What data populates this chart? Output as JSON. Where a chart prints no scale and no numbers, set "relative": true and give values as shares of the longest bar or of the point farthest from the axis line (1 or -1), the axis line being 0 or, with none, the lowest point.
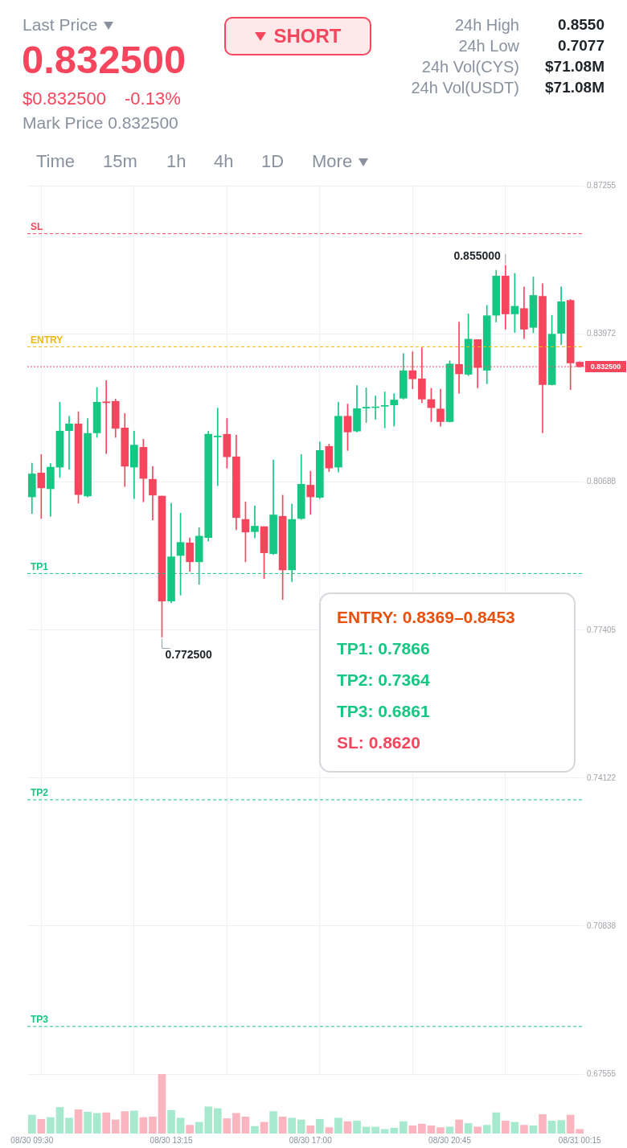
{
  "chart_data": [
    {
      "type": "other",
      "annotations": [
        "Last Price",
        "0.832500",
        "$0.832500",
        "-0.13%",
        "Mark Price 0.832500",
        "SHORT",
        "24h High",
        "0.8550",
        "24h Low",
        "0.7077",
        "24h Vol(CYS)",
        "$71.08M",
        "24h Vol(USDT)",
        "$71.08M",
        "Time",
        "15m",
        "1h",
        "4h",
        "1D",
        "More"
      ]
    },
    {
      "type": "candlestick",
      "categories": [
        null,
        null,
        null,
        null,
        null,
        null,
        null,
        null,
        null,
        null,
        null,
        null,
        null,
        null,
        null,
        null,
        null,
        null,
        null,
        null,
        null,
        null,
        null,
        null,
        null,
        null,
        null,
        null,
        null,
        null,
        null,
        null,
        null,
        null,
        null,
        null,
        null,
        null,
        null,
        null,
        null,
        null,
        null,
        null,
        null,
        null,
        null,
        null,
        null,
        null,
        null,
        null,
        null,
        null,
        null,
        null,
        null,
        null,
        null,
        null
      ],
      "ohlc": [
        [
          0.8036,
          0.8111,
          0.7999,
          0.8087
        ],
        [
          0.8089,
          0.813,
          0.7988,
          0.8056
        ],
        [
          0.8054,
          0.811,
          0.7993,
          0.8102
        ],
        [
          0.8102,
          0.8246,
          0.8079,
          0.8182
        ],
        [
          0.8183,
          0.8215,
          0.8097,
          0.8198
        ],
        [
          0.8198,
          0.8225,
          0.8022,
          0.8041
        ],
        [
          0.8038,
          0.821,
          0.8036,
          0.8177
        ],
        [
          0.8178,
          0.8279,
          0.8168,
          0.8246
        ],
        [
          0.8247,
          0.8294,
          0.8132,
          0.8245
        ],
        [
          0.8248,
          0.8253,
          0.8168,
          0.8188
        ],
        [
          0.8189,
          0.8221,
          0.8059,
          0.8104
        ],
        [
          0.8102,
          0.8182,
          0.8032,
          0.8151
        ],
        [
          0.8146,
          0.8164,
          0.8025,
          0.8077
        ],
        [
          0.8075,
          0.8104,
          0.7985,
          0.804
        ],
        [
          0.8038,
          0.8038,
          0.7725,
          0.7805
        ],
        [
          0.7805,
          0.8022,
          0.7801,
          0.7903
        ],
        [
          0.7906,
          0.8,
          0.7818,
          0.7935
        ],
        [
          0.7934,
          0.7945,
          0.7871,
          0.7892
        ],
        [
          0.7892,
          0.7968,
          0.7842,
          0.7949
        ],
        [
          0.7946,
          0.8182,
          0.7938,
          0.8175
        ],
        [
          0.8169,
          0.8233,
          0.8061,
          0.8171
        ],
        [
          0.8175,
          0.821,
          0.81,
          0.8125
        ],
        [
          0.8125,
          0.8173,
          0.7963,
          0.799
        ],
        [
          0.7986,
          0.8025,
          0.7892,
          0.7958
        ],
        [
          0.7959,
          0.8016,
          0.7945,
          0.7971
        ],
        [
          0.797,
          0.797,
          0.7855,
          0.7912
        ],
        [
          0.791,
          0.8118,
          0.7908,
          0.7996
        ],
        [
          0.7993,
          0.804,
          0.7808,
          0.7874
        ],
        [
          0.7874,
          0.802,
          0.7848,
          0.7986
        ],
        [
          0.7988,
          0.813,
          0.7986,
          0.8064
        ],
        [
          0.8062,
          0.8093,
          0.7997,
          0.8036
        ],
        [
          0.8035,
          0.8158,
          0.8032,
          0.8139
        ],
        [
          0.8148,
          0.8153,
          0.8092,
          0.81
        ],
        [
          0.8102,
          0.8246,
          0.8091,
          0.8215
        ],
        [
          0.8215,
          0.8242,
          0.8139,
          0.818
        ],
        [
          0.8182,
          0.8283,
          0.818,
          0.8232
        ],
        [
          0.8233,
          0.8278,
          0.8201,
          0.8235
        ],
        [
          0.8234,
          0.826,
          0.8208,
          0.8235
        ],
        [
          0.8237,
          0.8269,
          0.8189,
          0.8239
        ],
        [
          0.824,
          0.8265,
          0.8193,
          0.8251
        ],
        [
          0.8255,
          0.8354,
          0.8253,
          0.8316
        ],
        [
          0.8316,
          0.8358,
          0.8276,
          0.8298
        ],
        [
          0.8298,
          0.8367,
          0.8245,
          0.8253
        ],
        [
          0.8252,
          0.8277,
          0.8203,
          0.8234
        ],
        [
          0.8231,
          0.8275,
          0.8193,
          0.8203
        ],
        [
          0.8203,
          0.8338,
          0.8202,
          0.8331
        ],
        [
          0.833,
          0.8424,
          0.8266,
          0.8309
        ],
        [
          0.8308,
          0.8442,
          0.8305,
          0.8386
        ],
        [
          0.8385,
          0.8385,
          0.8278,
          0.8323
        ],
        [
          0.8317,
          0.8461,
          0.8287,
          0.8438
        ],
        [
          0.8439,
          0.8539,
          0.8424,
          0.8526
        ],
        [
          0.8526,
          0.855,
          0.8408,
          0.8442
        ],
        [
          0.8442,
          0.8532,
          0.8401,
          0.8459
        ],
        [
          0.8454,
          0.8502,
          0.8387,
          0.8408
        ],
        [
          0.8412,
          0.8524,
          0.84,
          0.8483
        ],
        [
          0.8481,
          0.8509,
          0.8178,
          0.8285
        ],
        [
          0.8285,
          0.8439,
          0.8284,
          0.8397
        ],
        [
          0.8399,
          0.8502,
          0.8374,
          0.8469
        ],
        [
          0.8472,
          0.8474,
          0.8274,
          0.8333
        ],
        [
          0.8335,
          0.8336,
          0.8324,
          0.8325
        ]
      ],
      "ylim": [
        0.67555,
        0.873
      ],
      "yticks": [
        0.67555,
        0.70838,
        0.74122,
        0.77405,
        0.80688,
        0.83972,
        0.87255
      ],
      "grid": true,
      "tick_labels": "y",
      "ref_lines": [
        {
          "axis": "y",
          "value": 0.862,
          "label": "SL",
          "color": "#f6465d",
          "line_style": "dashed"
        },
        {
          "axis": "y",
          "value": 0.8369,
          "label": "ENTRY",
          "color": "#f0b90b",
          "line_style": "dashed"
        },
        {
          "axis": "y",
          "value": 0.8325,
          "label": "0.832500",
          "color": "#f6465d",
          "line_style": "dotted"
        },
        {
          "axis": "y",
          "value": 0.7866,
          "label": "TP1",
          "color": "#16c784",
          "line_style": "dashed"
        },
        {
          "axis": "y",
          "value": 0.7364,
          "label": "TP2",
          "color": "#16c784",
          "line_style": "dashed"
        },
        {
          "axis": "y",
          "value": 0.6861,
          "label": "TP3",
          "color": "#16c784",
          "line_style": "dashed"
        }
      ],
      "annotations": [
        "0.855000",
        "0.772500",
        "ENTRY: 0.8369–0.8453",
        "TP1: 0.7866",
        "TP2: 0.7364",
        "TP3: 0.6861",
        "SL: 0.8620"
      ]
    },
    {
      "type": "bar",
      "relative": true,
      "categories": [
        "08/30 09:30",
        null,
        null,
        null,
        null,
        null,
        null,
        null,
        null,
        null,
        null,
        null,
        null,
        null,
        null,
        "08/30 13:15",
        null,
        null,
        null,
        null,
        null,
        null,
        null,
        null,
        null,
        null,
        null,
        null,
        null,
        null,
        "08/30 17:00",
        null,
        null,
        null,
        null,
        null,
        null,
        null,
        null,
        null,
        null,
        null,
        null,
        null,
        null,
        "08/30 20:45",
        null,
        null,
        null,
        null,
        null,
        null,
        null,
        null,
        null,
        null,
        null,
        null,
        null,
        "08/31 00:15"
      ],
      "values": [
        0.31,
        0.24,
        0.27,
        0.44,
        0.26,
        0.4,
        0.36,
        0.34,
        0.35,
        0.23,
        0.37,
        0.38,
        0.27,
        0.28,
        1,
        0.39,
        0.26,
        0.14,
        0.19,
        0.45,
        0.42,
        0.25,
        0.34,
        0.28,
        0.12,
        0.19,
        0.37,
        0.28,
        0.26,
        0.23,
        0.13,
        0.24,
        0.1,
        0.26,
        0.2,
        0.21,
        0.11,
        0.11,
        0.07,
        0.09,
        0.2,
        0.13,
        0.16,
        0.13,
        0.1,
        0.11,
        0.23,
        0.17,
        0.11,
        0.14,
        0.35,
        0.21,
        0.19,
        0.14,
        0.13,
        0.32,
        0.21,
        0.22,
        0.31,
        0.07
      ],
      "colors": [
        "#a6e9cf",
        "#fbb5bf",
        "#a6e9cf",
        "#a6e9cf",
        "#a6e9cf",
        "#fbb5bf",
        "#a6e9cf",
        "#a6e9cf",
        "#fbb5bf",
        "#fbb5bf",
        "#fbb5bf",
        "#a6e9cf",
        "#fbb5bf",
        "#fbb5bf",
        "#fbb5bf",
        "#a6e9cf",
        "#a6e9cf",
        "#fbb5bf",
        "#a6e9cf",
        "#a6e9cf",
        "#a6e9cf",
        "#fbb5bf",
        "#fbb5bf",
        "#fbb5bf",
        "#a6e9cf",
        "#fbb5bf",
        "#a6e9cf",
        "#fbb5bf",
        "#a6e9cf",
        "#a6e9cf",
        "#fbb5bf",
        "#a6e9cf",
        "#fbb5bf",
        "#a6e9cf",
        "#fbb5bf",
        "#a6e9cf",
        "#a6e9cf",
        "#a6e9cf",
        "#a6e9cf",
        "#a6e9cf",
        "#a6e9cf",
        "#fbb5bf",
        "#fbb5bf",
        "#fbb5bf",
        "#fbb5bf",
        "#a6e9cf",
        "#fbb5bf",
        "#a6e9cf",
        "#fbb5bf",
        "#a6e9cf",
        "#a6e9cf",
        "#fbb5bf",
        "#a6e9cf",
        "#fbb5bf",
        "#a6e9cf",
        "#fbb5bf",
        "#a6e9cf",
        "#a6e9cf",
        "#fbb5bf",
        "#fbb5bf"
      ]
    }
  ]
}
